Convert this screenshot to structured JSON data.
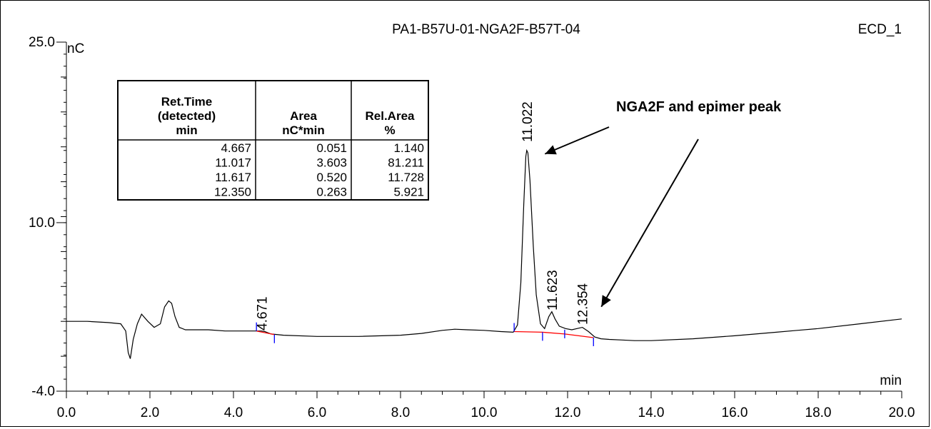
{
  "chart_data": {
    "type": "line",
    "title": "PA1-B57U-01-NGA2F-B57T-04",
    "channel": "ECD_1",
    "xlabel": "min",
    "ylabel": "nC",
    "xlim": [
      0.0,
      20.0
    ],
    "ylim": [
      -4.0,
      25.0
    ],
    "x_ticks": [
      "0.0",
      "2.0",
      "4.0",
      "6.0",
      "8.0",
      "10.0",
      "12.0",
      "14.0",
      "16.0",
      "18.0",
      "20.0"
    ],
    "y_ticks": [
      "-4.0",
      "10.0",
      "25.0"
    ],
    "grid": false,
    "trace": {
      "x": [
        0.0,
        0.5,
        1.0,
        1.3,
        1.42,
        1.48,
        1.53,
        1.6,
        1.7,
        1.8,
        1.95,
        2.1,
        2.25,
        2.35,
        2.45,
        2.52,
        2.6,
        2.7,
        2.85,
        3.0,
        3.4,
        3.8,
        4.0,
        4.4,
        4.6,
        4.67,
        4.75,
        4.9,
        5.2,
        6.0,
        7.0,
        8.0,
        8.5,
        9.0,
        9.3,
        9.6,
        10.0,
        10.4,
        10.7,
        10.8,
        10.88,
        10.95,
        11.0,
        11.022,
        11.05,
        11.1,
        11.18,
        11.25,
        11.35,
        11.45,
        11.55,
        11.623,
        11.7,
        11.8,
        11.95,
        12.1,
        12.354,
        12.5,
        12.65,
        12.8,
        13.0,
        13.3,
        13.6,
        14.0,
        15.0,
        16.0,
        17.0,
        17.5,
        18.0,
        19.0,
        20.0
      ],
      "y": [
        1.8,
        1.8,
        1.7,
        1.6,
        1.0,
        -0.8,
        -1.3,
        0.3,
        1.6,
        2.4,
        1.8,
        1.3,
        1.6,
        3.0,
        3.5,
        3.3,
        2.2,
        1.3,
        1.1,
        1.1,
        1.1,
        1.0,
        1.0,
        1.0,
        1.0,
        1.0,
        0.95,
        0.75,
        0.65,
        0.55,
        0.55,
        0.65,
        0.8,
        1.05,
        1.15,
        1.1,
        1.05,
        0.95,
        0.9,
        1.5,
        5.0,
        11.5,
        15.5,
        16.0,
        15.8,
        13.5,
        8.0,
        4.0,
        1.6,
        1.2,
        2.2,
        2.6,
        2.0,
        1.4,
        1.2,
        1.1,
        1.3,
        0.95,
        0.5,
        0.35,
        0.3,
        0.25,
        0.2,
        0.2,
        0.35,
        0.6,
        0.9,
        1.05,
        1.2,
        1.6,
        2.0
      ]
    },
    "peaks": [
      {
        "label": "4.671",
        "x": 4.671
      },
      {
        "label": "11.022",
        "x": 11.022
      },
      {
        "label": "11.623",
        "x": 11.623
      },
      {
        "label": "12.354",
        "x": 12.354
      }
    ],
    "integration_marks": [
      4.55,
      4.98,
      10.72,
      11.4,
      11.93,
      12.62
    ],
    "baselines": [
      {
        "x": [
          4.55,
          4.98
        ],
        "y": [
          1.0,
          0.7
        ]
      },
      {
        "x": [
          10.72,
          11.4,
          11.93,
          12.62
        ],
        "y": [
          0.95,
          0.9,
          0.75,
          0.45
        ]
      }
    ],
    "annotation": "NGA2F and epimer peak",
    "arrow_targets": [
      {
        "x": 11.15,
        "y": 15.0
      },
      {
        "x": 12.5,
        "y": 2.3
      }
    ],
    "table": {
      "headers": [
        [
          "Ret.Time",
          "(detected)",
          "min"
        ],
        [
          "Area",
          "nC*min"
        ],
        [
          "Rel.Area",
          "%"
        ]
      ],
      "rows": [
        [
          "4.667",
          "0.051",
          "1.140"
        ],
        [
          "11.017",
          "3.603",
          "81.211"
        ],
        [
          "11.617",
          "0.520",
          "11.728"
        ],
        [
          "12.350",
          "0.263",
          "5.921"
        ]
      ]
    },
    "colors": {
      "trace": "#000000",
      "baseline": "#ff0000",
      "marks": "#0000ff"
    }
  }
}
